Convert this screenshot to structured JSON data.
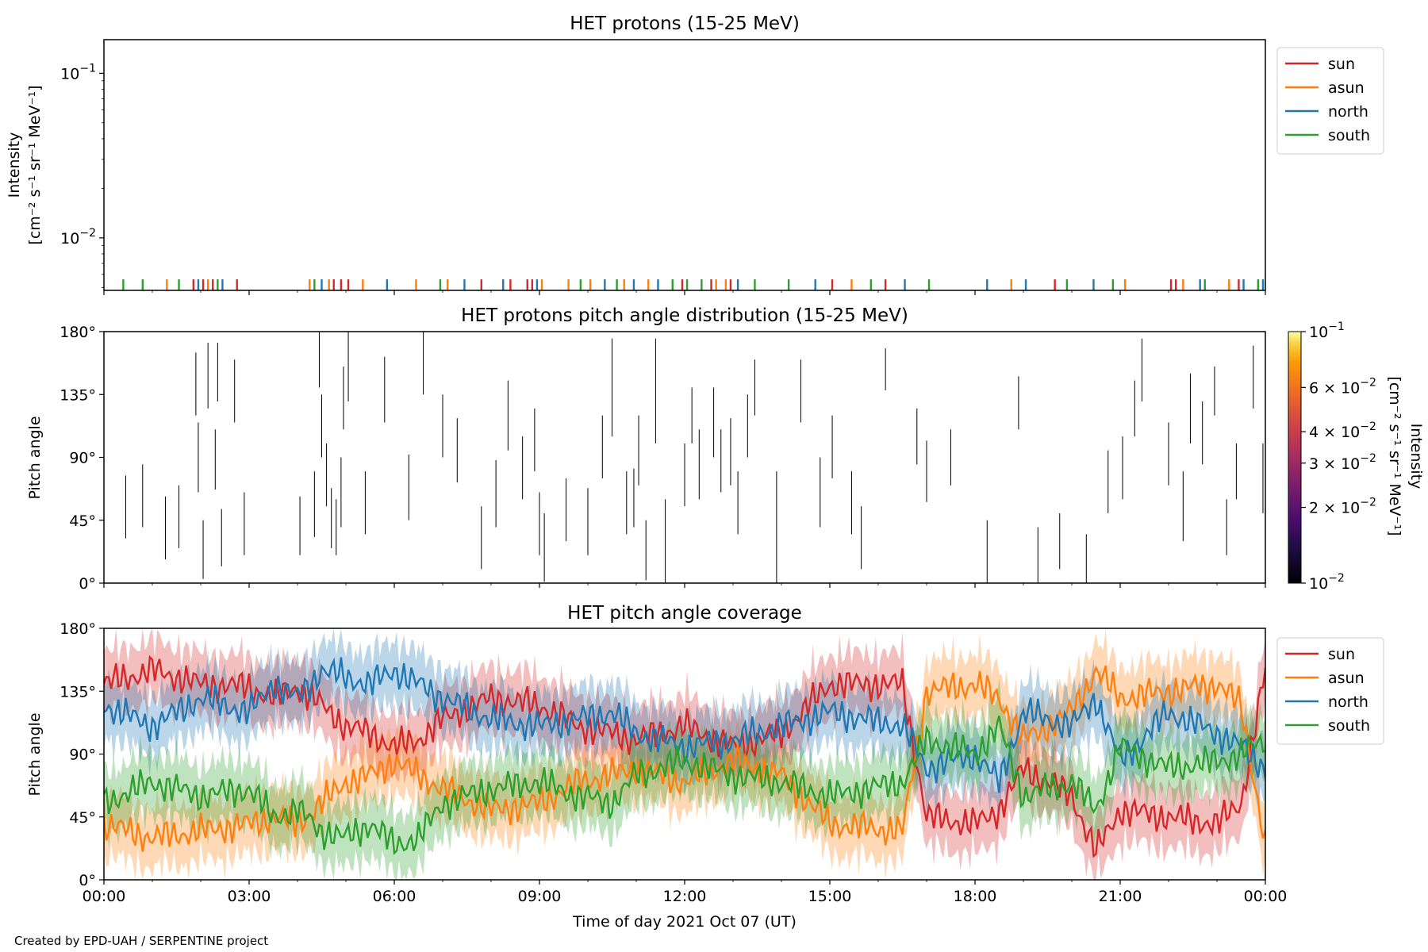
{
  "figure": {
    "xlabel": "Time of day 2021 Oct 07 (UT)",
    "credit": "Created by EPD-UAH / SERPENTINE project",
    "time_ticks": [
      "00:00",
      "03:00",
      "06:00",
      "09:00",
      "12:00",
      "15:00",
      "18:00",
      "21:00",
      "00:00"
    ]
  },
  "chart_data": [
    {
      "type": "line",
      "title": "HET protons (15-25 MeV)",
      "ylabel_line1": "Intensity",
      "ylabel_line2": "[cm⁻² s⁻¹ sr⁻¹ MeV⁻¹]",
      "yscale": "log",
      "ylim": [
        0.0048,
        0.16
      ],
      "xlim_hours": [
        0,
        24
      ],
      "ytick_labels": [
        {
          "value": 0.1,
          "base": "10",
          "exp": "−1"
        },
        {
          "value": 0.01,
          "base": "10",
          "exp": "−2"
        }
      ],
      "grid": false,
      "legend_position": "right-top",
      "baseline_value": 0.0056,
      "series": [
        {
          "name": "sun",
          "color": "#d62728",
          "spike_times_hours": [
            1.85,
            2.05,
            2.25,
            2.75,
            4.75,
            4.9,
            5.05,
            7.8,
            8.4,
            8.75,
            8.85,
            11.95,
            12.55,
            12.95,
            15.05,
            16.15,
            19.65,
            22.05,
            22.15,
            23.45
          ]
        },
        {
          "name": "asun",
          "color": "#ff7f0e",
          "spike_times_hours": [
            1.3,
            2.15,
            4.25,
            4.65,
            5.35,
            6.45,
            7.1,
            9.05,
            9.6,
            10.05,
            10.75,
            11.25,
            12.65,
            12.85,
            15.45,
            18.75,
            21.1,
            22.3,
            23.25
          ]
        },
        {
          "name": "north",
          "color": "#1f77b4",
          "spike_times_hours": [
            1.95,
            2.45,
            4.5,
            5.85,
            7.45,
            8.25,
            8.95,
            10.35,
            10.95,
            11.45,
            13.1,
            14.7,
            16.55,
            18.25,
            19.05,
            20.45,
            22.65,
            23.55,
            23.95
          ]
        },
        {
          "name": "south",
          "color": "#2ca02c",
          "spike_times_hours": [
            0.4,
            0.8,
            1.55,
            2.35,
            4.35,
            6.95,
            9.85,
            10.6,
            11.75,
            12.05,
            12.35,
            13.45,
            14.15,
            15.85,
            17.05,
            19.9,
            20.85,
            22.75,
            23.85
          ]
        }
      ]
    },
    {
      "type": "heatmap",
      "title": "HET protons pitch angle distribution (15-25 MeV)",
      "ylabel": "Pitch angle",
      "ylim": [
        0,
        180
      ],
      "xlim_hours": [
        0,
        24
      ],
      "ytick_labels": [
        "0°",
        "45°",
        "90°",
        "135°",
        "180°"
      ],
      "ytick_values": [
        0,
        45,
        90,
        135,
        180
      ],
      "colorbar": {
        "label_line1": "Intensity",
        "label_line2": "[cm⁻² s⁻¹ sr⁻¹ MeV⁻¹]",
        "scale": "log",
        "range": [
          0.01,
          0.1
        ],
        "colormap": "inferno",
        "ticks": [
          {
            "value": 0.1,
            "text": "10",
            "exp": "−1"
          },
          {
            "value": 0.06,
            "text": "6 × 10",
            "exp": "−2"
          },
          {
            "value": 0.04,
            "text": "4 × 10",
            "exp": "−2"
          },
          {
            "value": 0.03,
            "text": "3 × 10",
            "exp": "−2"
          },
          {
            "value": 0.02,
            "text": "2 × 10",
            "exp": "−2"
          },
          {
            "value": 0.01,
            "text": "10",
            "exp": "−2"
          }
        ]
      },
      "segments": [
        [
          0.45,
          32,
          77
        ],
        [
          0.8,
          40,
          85
        ],
        [
          1.27,
          17,
          62
        ],
        [
          1.55,
          25,
          70
        ],
        [
          1.9,
          120,
          165
        ],
        [
          1.95,
          65,
          115
        ],
        [
          2.05,
          3,
          45
        ],
        [
          2.15,
          125,
          172
        ],
        [
          2.3,
          67,
          110
        ],
        [
          2.35,
          130,
          172
        ],
        [
          2.43,
          12,
          53
        ],
        [
          2.7,
          115,
          160
        ],
        [
          2.9,
          20,
          65
        ],
        [
          4.05,
          20,
          62
        ],
        [
          4.35,
          33,
          80
        ],
        [
          4.45,
          140,
          180
        ],
        [
          4.5,
          90,
          135
        ],
        [
          4.6,
          55,
          100
        ],
        [
          4.7,
          25,
          68
        ],
        [
          4.8,
          20,
          60
        ],
        [
          4.9,
          40,
          90
        ],
        [
          4.95,
          110,
          155
        ],
        [
          5.05,
          130,
          180
        ],
        [
          5.4,
          35,
          80
        ],
        [
          5.8,
          115,
          162
        ],
        [
          6.3,
          45,
          92
        ],
        [
          6.6,
          135,
          180
        ],
        [
          7.0,
          90,
          135
        ],
        [
          7.3,
          72,
          118
        ],
        [
          7.8,
          10,
          55
        ],
        [
          8.1,
          40,
          88
        ],
        [
          8.35,
          95,
          145
        ],
        [
          8.65,
          60,
          105
        ],
        [
          8.9,
          80,
          125
        ],
        [
          9.0,
          20,
          65
        ],
        [
          9.1,
          1,
          50
        ],
        [
          9.55,
          30,
          75
        ],
        [
          10.0,
          20,
          68
        ],
        [
          10.3,
          75,
          120
        ],
        [
          10.5,
          105,
          175
        ],
        [
          10.8,
          35,
          80
        ],
        [
          10.95,
          40,
          82
        ],
        [
          11.05,
          70,
          120
        ],
        [
          11.2,
          2,
          45
        ],
        [
          11.4,
          100,
          175
        ],
        [
          11.6,
          0,
          60
        ],
        [
          12.0,
          55,
          100
        ],
        [
          12.15,
          100,
          140
        ],
        [
          12.3,
          60,
          110
        ],
        [
          12.6,
          90,
          140
        ],
        [
          12.75,
          65,
          110
        ],
        [
          12.95,
          70,
          118
        ],
        [
          13.1,
          35,
          80
        ],
        [
          13.3,
          90,
          135
        ],
        [
          13.45,
          120,
          160
        ],
        [
          13.9,
          0,
          80
        ],
        [
          14.4,
          115,
          160
        ],
        [
          14.8,
          40,
          90
        ],
        [
          15.05,
          75,
          120
        ],
        [
          15.45,
          35,
          80
        ],
        [
          15.65,
          10,
          55
        ],
        [
          16.15,
          138,
          168
        ],
        [
          16.8,
          85,
          125
        ],
        [
          17.0,
          58,
          102
        ],
        [
          17.5,
          70,
          110
        ],
        [
          18.25,
          0,
          45
        ],
        [
          18.9,
          110,
          148
        ],
        [
          19.3,
          0,
          40
        ],
        [
          19.75,
          10,
          50
        ],
        [
          20.3,
          0,
          35
        ],
        [
          20.75,
          50,
          95
        ],
        [
          21.05,
          60,
          105
        ],
        [
          21.3,
          105,
          145
        ],
        [
          21.45,
          130,
          175
        ],
        [
          22.0,
          70,
          115
        ],
        [
          22.3,
          30,
          80
        ],
        [
          22.45,
          100,
          150
        ],
        [
          22.7,
          85,
          130
        ],
        [
          22.95,
          120,
          155
        ],
        [
          23.2,
          20,
          60
        ],
        [
          23.4,
          60,
          100
        ],
        [
          23.75,
          125,
          170
        ],
        [
          23.95,
          50,
          100
        ]
      ]
    },
    {
      "type": "area",
      "title": "HET pitch angle coverage",
      "ylabel": "Pitch angle",
      "ylim": [
        0,
        180
      ],
      "xlim_hours": [
        0,
        24
      ],
      "ytick_labels": [
        "0°",
        "45°",
        "90°",
        "135°",
        "180°"
      ],
      "ytick_values": [
        0,
        45,
        90,
        135,
        180
      ],
      "band_halfwidth_deg": 22,
      "legend_position": "right-top",
      "series": [
        {
          "name": "sun",
          "color": "#d62728",
          "x_hours": [
            0,
            1,
            2,
            3,
            3.5,
            4,
            4.5,
            5,
            5.5,
            6,
            6.5,
            7,
            8,
            9,
            9.8,
            10.5,
            11,
            12,
            13,
            14,
            15,
            16.5,
            17,
            18,
            18.5,
            19,
            20,
            20.5,
            21,
            22,
            23,
            23.5,
            24
          ],
          "y_deg": [
            140,
            150,
            140,
            138,
            130,
            138,
            125,
            110,
            105,
            95,
            100,
            115,
            130,
            125,
            110,
            105,
            100,
            110,
            95,
            105,
            140,
            140,
            45,
            40,
            50,
            80,
            60,
            20,
            50,
            45,
            40,
            55,
            150
          ]
        },
        {
          "name": "asun",
          "color": "#ff7f0e",
          "x_hours": [
            0,
            1,
            2,
            3,
            3.5,
            4,
            4.5,
            5,
            5.5,
            6,
            6.5,
            7,
            8,
            9,
            9.8,
            10.5,
            11,
            12,
            13,
            14,
            15,
            16.5,
            17,
            18,
            18.5,
            19,
            20,
            20.5,
            21,
            22,
            23,
            23.5,
            24
          ],
          "y_deg": [
            40,
            30,
            35,
            40,
            45,
            40,
            55,
            70,
            75,
            85,
            75,
            65,
            50,
            55,
            70,
            75,
            80,
            70,
            85,
            75,
            40,
            35,
            135,
            140,
            130,
            100,
            120,
            150,
            130,
            135,
            140,
            125,
            25
          ]
        },
        {
          "name": "north",
          "color": "#1f77b4",
          "x_hours": [
            0,
            1,
            2,
            3,
            3.5,
            4,
            4.5,
            5,
            5.5,
            6,
            6.5,
            7,
            8,
            9,
            9.8,
            10.5,
            11,
            12,
            13,
            14,
            15,
            16.5,
            17,
            18,
            18.5,
            19,
            20,
            20.5,
            21,
            22,
            23,
            23.5,
            24
          ],
          "y_deg": [
            125,
            110,
            130,
            120,
            140,
            130,
            150,
            145,
            140,
            150,
            140,
            130,
            115,
            110,
            115,
            120,
            105,
            95,
            100,
            110,
            120,
            110,
            80,
            90,
            70,
            120,
            110,
            130,
            85,
            120,
            105,
            95,
            80
          ]
        },
        {
          "name": "south",
          "color": "#2ca02c",
          "x_hours": [
            0,
            1,
            2,
            3,
            3.5,
            4,
            4.5,
            5,
            5.5,
            6,
            6.5,
            7,
            8,
            9,
            9.8,
            10.5,
            11,
            12,
            13,
            14,
            15,
            16.5,
            17,
            18,
            18.5,
            19,
            20,
            20.5,
            21,
            22,
            23,
            23.5,
            24
          ],
          "y_deg": [
            55,
            70,
            60,
            65,
            45,
            50,
            35,
            30,
            40,
            25,
            30,
            55,
            65,
            70,
            60,
            55,
            75,
            85,
            75,
            70,
            60,
            70,
            100,
            90,
            110,
            60,
            70,
            50,
            95,
            80,
            85,
            90,
            100
          ]
        }
      ]
    }
  ]
}
